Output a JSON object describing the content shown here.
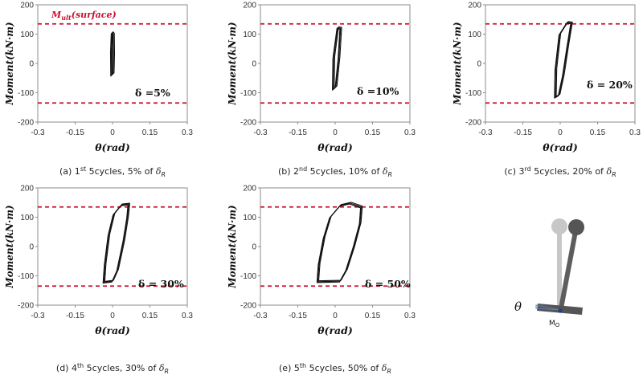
{
  "colors": {
    "limit_line": "#c8102e",
    "curve": "#111111",
    "axis": "#8c8c8c"
  },
  "annotation": {
    "mult_prefix": "M",
    "mult_sub": "ult",
    "mult_suffix": "(surface)"
  },
  "axis_text": {
    "xlabel": "θ(rad)",
    "ylabel": "Moment(kN·m)"
  },
  "chart_data": [
    {
      "type": "line",
      "x_ticks": [
        "-0.3",
        "-0.15",
        "0",
        "0.15",
        "0.3"
      ],
      "y_ticks": [
        "200",
        "100",
        "0",
        "-100",
        "-200"
      ],
      "xlim": [
        -0.3,
        0.3
      ],
      "ylim": [
        -200,
        200
      ],
      "limit_lines": [
        135,
        -135
      ],
      "delta_label": "δ =5%",
      "caption": {
        "prefix": "(a)  1",
        "sup": "st",
        "middle": "  5cycles,  5%  of  ",
        "delta": "δ",
        "sub": "R"
      },
      "loop": [
        [
          -0.004,
          -40
        ],
        [
          -0.005,
          40
        ],
        [
          -0.002,
          105
        ],
        [
          0.003,
          100
        ],
        [
          0.004,
          30
        ],
        [
          0.002,
          -35
        ],
        [
          -0.004,
          -40
        ]
      ]
    },
    {
      "type": "line",
      "x_ticks": [
        "-0.3",
        "-0.15",
        "0",
        "0.15",
        "0.3"
      ],
      "y_ticks": [
        "200",
        "100",
        "0",
        "-100",
        "-200"
      ],
      "xlim": [
        -0.3,
        0.3
      ],
      "ylim": [
        -200,
        200
      ],
      "limit_lines": [
        135,
        -135
      ],
      "delta_label": "δ =10%",
      "caption": {
        "prefix": "(b)  2",
        "sup": "nd",
        "middle": "  5cycles,  10%  of  ",
        "delta": "δ",
        "sub": "R"
      },
      "loop": [
        [
          -0.008,
          -88
        ],
        [
          -0.006,
          20
        ],
        [
          0.01,
          122
        ],
        [
          0.022,
          120
        ],
        [
          0.015,
          20
        ],
        [
          0.003,
          -80
        ],
        [
          -0.008,
          -88
        ]
      ]
    },
    {
      "type": "line",
      "x_ticks": [
        "-0.3",
        "-0.15",
        "0",
        "0.15",
        "0.3"
      ],
      "y_ticks": [
        "200",
        "100",
        "0",
        "-100",
        "-200"
      ],
      "xlim": [
        -0.3,
        0.3
      ],
      "ylim": [
        -200,
        200
      ],
      "limit_lines": [
        135,
        -135
      ],
      "delta_label": "δ = 20%",
      "caption": {
        "prefix": "(c)  3",
        "sup": "rd",
        "middle": "  5cycles,  20%  of  ",
        "delta": "δ",
        "sub": "R"
      },
      "loop": [
        [
          -0.02,
          -115
        ],
        [
          -0.018,
          -20
        ],
        [
          -0.002,
          100
        ],
        [
          0.028,
          140
        ],
        [
          0.045,
          138
        ],
        [
          0.03,
          60
        ],
        [
          0.012,
          -40
        ],
        [
          -0.005,
          -108
        ],
        [
          -0.02,
          -115
        ]
      ]
    },
    {
      "type": "line",
      "x_ticks": [
        "-0.3",
        "-0.15",
        "0",
        "0.15",
        "0.3"
      ],
      "y_ticks": [
        "200",
        "100",
        "0",
        "-100",
        "-200"
      ],
      "xlim": [
        -0.3,
        0.3
      ],
      "ylim": [
        -200,
        200
      ],
      "limit_lines": [
        135,
        -135
      ],
      "delta_label": "δ = 30%",
      "caption": {
        "prefix": "(d)  4",
        "sup": "th",
        "middle": "  5cycles,  30%  of  ",
        "delta": "δ",
        "sub": "R"
      },
      "loop": [
        [
          -0.035,
          -122
        ],
        [
          -0.03,
          -60
        ],
        [
          -0.015,
          40
        ],
        [
          0.005,
          110
        ],
        [
          0.035,
          142
        ],
        [
          0.065,
          145
        ],
        [
          0.06,
          100
        ],
        [
          0.045,
          20
        ],
        [
          0.02,
          -80
        ],
        [
          0.0,
          -118
        ],
        [
          -0.035,
          -122
        ]
      ]
    },
    {
      "type": "line",
      "x_ticks": [
        "-0.3",
        "-0.15",
        "0",
        "0.15",
        "0.3"
      ],
      "y_ticks": [
        "200",
        "100",
        "0",
        "-100",
        "-200"
      ],
      "xlim": [
        -0.3,
        0.3
      ],
      "ylim": [
        -200,
        200
      ],
      "limit_lines": [
        135,
        -135
      ],
      "delta_label": "δ = 50%",
      "caption": {
        "prefix": "(e)  5",
        "sup": "th",
        "middle": "  5cycles,  50%  of  ",
        "delta": "δ",
        "sub": "R"
      },
      "loop": [
        [
          -0.07,
          -120
        ],
        [
          -0.065,
          -60
        ],
        [
          -0.045,
          30
        ],
        [
          -0.02,
          100
        ],
        [
          0.02,
          140
        ],
        [
          0.06,
          148
        ],
        [
          0.105,
          135
        ],
        [
          0.1,
          80
        ],
        [
          0.075,
          0
        ],
        [
          0.045,
          -80
        ],
        [
          0.02,
          -118
        ],
        [
          -0.07,
          -120
        ]
      ]
    }
  ],
  "diagram": {
    "theta_label": "θ",
    "mo_prefix": "M",
    "mo_sub": "O"
  }
}
